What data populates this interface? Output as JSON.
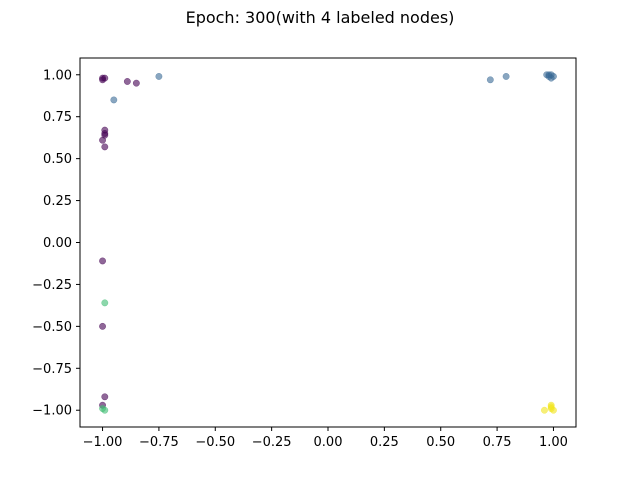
{
  "chart_data": {
    "type": "scatter",
    "title": "Epoch: 300(with 4 labeled nodes)",
    "xlabel": "",
    "ylabel": "",
    "xlim": [
      -1.1,
      1.1
    ],
    "ylim": [
      -1.1,
      1.1
    ],
    "grid": false,
    "x_ticks": [
      -1.0,
      -0.75,
      -0.5,
      -0.25,
      0.0,
      0.25,
      0.5,
      0.75,
      1.0
    ],
    "x_tick_labels": [
      "−1.00",
      "−0.75",
      "−0.50",
      "−0.25",
      "0.00",
      "0.25",
      "0.50",
      "0.75",
      "1.00"
    ],
    "y_ticks": [
      1.0,
      0.75,
      0.5,
      0.25,
      0.0,
      -0.25,
      -0.5,
      -0.75,
      -1.0
    ],
    "y_tick_labels": [
      "1.00",
      "0.75",
      "0.50",
      "0.25",
      "0.00",
      "−0.25",
      "−0.50",
      "−0.75",
      "−1.00"
    ],
    "colors": {
      "purple": "#440154",
      "steel_blue": "#3b6b96",
      "teal_green": "#3fbc73",
      "yellow": "#f2e51d"
    },
    "series": [
      {
        "color": "purple",
        "points": [
          [
            -1.0,
            0.98
          ],
          [
            -0.99,
            0.98
          ],
          [
            -1.0,
            0.97
          ],
          [
            -0.89,
            0.96
          ],
          [
            -0.85,
            0.95
          ],
          [
            -0.99,
            0.67
          ],
          [
            -0.99,
            0.65
          ],
          [
            -0.99,
            0.64
          ],
          [
            -1.0,
            0.61
          ],
          [
            -0.99,
            0.57
          ],
          [
            -1.0,
            -0.11
          ],
          [
            -1.0,
            -0.5
          ],
          [
            -0.99,
            -0.92
          ],
          [
            -1.0,
            -0.97
          ]
        ]
      },
      {
        "color": "steel_blue",
        "points": [
          [
            -0.75,
            0.99
          ],
          [
            -0.95,
            0.85
          ],
          [
            0.72,
            0.97
          ],
          [
            0.79,
            0.99
          ],
          [
            0.97,
            1.0
          ],
          [
            0.98,
            0.99
          ],
          [
            0.99,
            1.0
          ],
          [
            1.0,
            0.99
          ],
          [
            0.99,
            0.98
          ],
          [
            0.98,
            1.0
          ]
        ]
      },
      {
        "color": "teal_green",
        "points": [
          [
            -0.99,
            -0.36
          ],
          [
            -1.0,
            -0.99
          ],
          [
            -0.99,
            -1.0
          ]
        ]
      },
      {
        "color": "yellow",
        "points": [
          [
            0.96,
            -1.0
          ],
          [
            0.99,
            -0.97
          ],
          [
            0.99,
            -0.99
          ],
          [
            1.0,
            -1.0
          ],
          [
            0.99,
            -0.98
          ]
        ]
      }
    ]
  }
}
